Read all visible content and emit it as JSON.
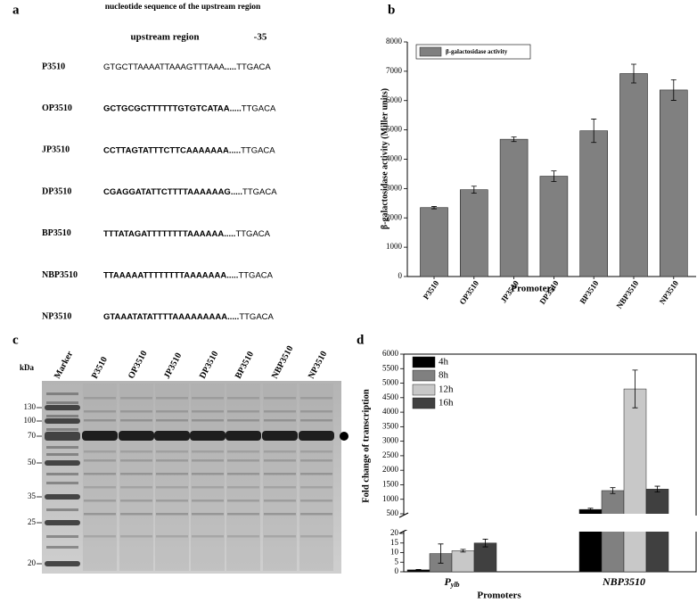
{
  "panel_a": {
    "label": "a",
    "title": "nucleotide sequence of the  upstream region",
    "region_label": "upstream region",
    "minus35_label": "-35",
    "rows": [
      {
        "name": "P3510",
        "sequence": "GTGCTTAAAATTAAAGTTTAAA",
        "dots": ".....",
        "motif": "TTGACA",
        "bold": false
      },
      {
        "name": "OP3510",
        "sequence": "GCTGCGCTTTTTTGTGTCATAA",
        "dots": ".....",
        "motif": "TTGACA",
        "bold": true
      },
      {
        "name": "JP3510",
        "sequence": "CCTTAGTATTTCTTCAAAAAAA",
        "dots": ".....",
        "motif": "TTGACA",
        "bold": true
      },
      {
        "name": "DP3510",
        "sequence": "CGAGGATATTCTTTTAAAAAAG",
        "dots": ".....",
        "motif": "TTGACA",
        "bold": true
      },
      {
        "name": "BP3510",
        "sequence": "TTTATAGATTTTTTTTAAAAAA",
        "dots": ".....",
        "motif": "TTGACA",
        "bold": true
      },
      {
        "name": "NBP3510",
        "sequence": "TTAAAAATTTTTTTTAAAAAAA",
        "dots": ".....",
        "motif": "TTGACA",
        "bold": true
      },
      {
        "name": "NP3510",
        "sequence": "GTAAATATATTTTAAAAAAAAA",
        "dots": ".....",
        "motif": "TTGACA",
        "bold": true
      }
    ]
  },
  "panel_c": {
    "label": "c",
    "unit": "kDa",
    "markers": [
      130,
      100,
      70,
      50,
      35,
      25,
      20
    ],
    "lanes": [
      "Marker",
      "P3510",
      "OP3510",
      "JP3510",
      "DP3510",
      "BP3510",
      "NBP3510",
      "NP3510"
    ]
  },
  "chart_data": [
    {
      "type": "bar",
      "panel": "b",
      "ylabel": "β-galactosidase activity (Miller units)",
      "xlabel": "Promoters",
      "categories": [
        "P3510",
        "OP3510",
        "JP3510",
        "DP3510",
        "BP3510",
        "NBP3510",
        "NP3510"
      ],
      "series": [
        {
          "name": "β-galactosidase activity",
          "color": "#808080",
          "values": [
            2350,
            2960,
            4680,
            3420,
            4970,
            6920,
            6360
          ],
          "errors": [
            40,
            120,
            80,
            180,
            400,
            320,
            350
          ]
        }
      ],
      "ylim": [
        0,
        8000
      ],
      "yticks": [
        0,
        1000,
        2000,
        3000,
        4000,
        5000,
        6000,
        7000,
        8000
      ]
    },
    {
      "type": "broken_bar",
      "panel": "d",
      "ylabel": "Fold change of transcription",
      "xlabel": "Promoters",
      "categories": [
        "P",
        "NBP3510"
      ],
      "category_subscripts": [
        "ylb",
        null
      ],
      "series": [
        {
          "name": "4h",
          "color": "#000000",
          "values": [
            1,
            650
          ],
          "errors": [
            0.2,
            40
          ]
        },
        {
          "name": "8h",
          "color": "#808080",
          "values": [
            9.5,
            1300
          ],
          "errors": [
            5,
            100
          ]
        },
        {
          "name": "12h",
          "color": "#c8c8c8",
          "values": [
            11,
            4800
          ],
          "errors": [
            0.7,
            650
          ]
        },
        {
          "name": "16h",
          "color": "#404040",
          "values": [
            15,
            1350
          ],
          "errors": [
            2,
            100
          ]
        }
      ],
      "ylim_lower": [
        0,
        20
      ],
      "yticks_lower": [
        0,
        5,
        10,
        15,
        20
      ],
      "ylim_upper": [
        500,
        6000
      ],
      "yticks_upper": [
        500,
        1000,
        1500,
        2000,
        2500,
        3000,
        3500,
        4000,
        4500,
        5000,
        5500,
        6000
      ]
    }
  ]
}
